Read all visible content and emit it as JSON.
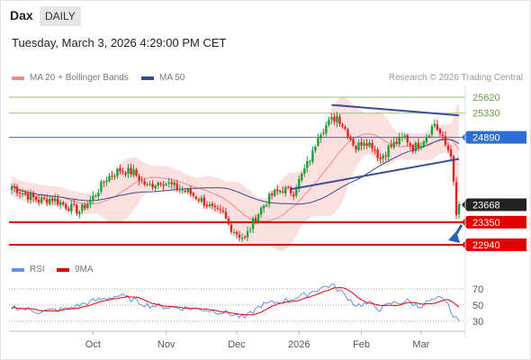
{
  "header": {
    "symbol": "Dax",
    "period": "DAILY",
    "datetime": "Tuesday, March 3, 2026 4:29:00 PM CET",
    "credit": "Research © 2026 Trading Central"
  },
  "colors": {
    "price_up": "#1f9e3a",
    "price_down": "#e0231e",
    "band_fill": "#fbd9d9",
    "ma20": "#f08a8a",
    "ma50": "#3b4a8c",
    "resistance": "#9ac77a",
    "pivot": "#2a6fd6",
    "support": "#e00000",
    "current": "#222222",
    "trendline": "#3c4a9a",
    "arrow": "#2660b8",
    "rsi": "#6b8fe0",
    "rsi_ma": "#e00000"
  },
  "chart_data": [
    {
      "type": "line",
      "name": "price",
      "ylim": [
        22800,
        25800
      ],
      "x_tick_labels": [
        "Oct",
        "Nov",
        "Dec",
        "2026",
        "Feb",
        "Mar"
      ],
      "legend": [
        {
          "label": "MA 20 + Bollinger Bands"
        },
        {
          "label": "MA 50"
        }
      ],
      "levels": [
        {
          "value": 25620,
          "label": "25620",
          "kind": "resistance"
        },
        {
          "value": 25330,
          "label": "25330",
          "kind": "resistance"
        },
        {
          "value": 24890,
          "label": "24890",
          "kind": "pivot"
        },
        {
          "value": 23668,
          "label": "23668",
          "kind": "current"
        },
        {
          "value": 23350,
          "label": "23350",
          "kind": "support"
        },
        {
          "value": 22940,
          "label": "22940",
          "kind": "support"
        }
      ],
      "close_key": [
        [
          0,
          24000
        ],
        [
          5,
          23850
        ],
        [
          10,
          23750
        ],
        [
          15,
          23780
        ],
        [
          20,
          23650
        ],
        [
          25,
          23550
        ],
        [
          30,
          23800
        ],
        [
          35,
          24150
        ],
        [
          40,
          24300
        ],
        [
          45,
          24250
        ],
        [
          50,
          24000
        ],
        [
          55,
          24100
        ],
        [
          60,
          24000
        ],
        [
          65,
          23900
        ],
        [
          70,
          23750
        ],
        [
          75,
          23550
        ],
        [
          78,
          23500
        ],
        [
          80,
          23300
        ],
        [
          83,
          23150
        ],
        [
          86,
          23050
        ],
        [
          89,
          23350
        ],
        [
          92,
          23600
        ],
        [
          96,
          23850
        ],
        [
          100,
          23950
        ],
        [
          104,
          23900
        ],
        [
          108,
          24300
        ],
        [
          111,
          24600
        ],
        [
          113,
          24950
        ],
        [
          116,
          25100
        ],
        [
          118,
          25200
        ],
        [
          120,
          25280
        ],
        [
          123,
          25050
        ],
        [
          127,
          24700
        ],
        [
          130,
          24850
        ],
        [
          133,
          24750
        ],
        [
          136,
          24500
        ],
        [
          139,
          24700
        ],
        [
          142,
          24800
        ],
        [
          145,
          24900
        ],
        [
          148,
          24700
        ],
        [
          151,
          24800
        ],
        [
          154,
          25000
        ],
        [
          156,
          25150
        ],
        [
          158,
          24950
        ],
        [
          160,
          24750
        ],
        [
          162,
          24600
        ],
        [
          164,
          23450
        ],
        [
          165,
          23668
        ]
      ],
      "trendlines": [
        {
          "points": [
            [
              118,
              25480
            ],
            [
              165,
              25290
            ]
          ]
        },
        {
          "points": [
            [
              103,
              23950
            ],
            [
              165,
              24500
            ]
          ]
        }
      ],
      "projection": {
        "points": [
          [
            166,
            23300
          ],
          [
            178,
            22940
          ]
        ]
      }
    },
    {
      "type": "line",
      "name": "rsi",
      "ylim": [
        25,
        80
      ],
      "y_tick_labels": [
        "70",
        "50",
        "30"
      ],
      "legend": [
        {
          "label": "RSI"
        },
        {
          "label": "9MA"
        }
      ],
      "rsi_key": [
        [
          0,
          48
        ],
        [
          10,
          42
        ],
        [
          20,
          45
        ],
        [
          30,
          55
        ],
        [
          40,
          62
        ],
        [
          50,
          50
        ],
        [
          60,
          47
        ],
        [
          70,
          45
        ],
        [
          80,
          40
        ],
        [
          86,
          34
        ],
        [
          92,
          50
        ],
        [
          100,
          55
        ],
        [
          108,
          62
        ],
        [
          113,
          70
        ],
        [
          118,
          75
        ],
        [
          122,
          65
        ],
        [
          127,
          50
        ],
        [
          132,
          52
        ],
        [
          136,
          45
        ],
        [
          140,
          52
        ],
        [
          146,
          55
        ],
        [
          150,
          48
        ],
        [
          154,
          55
        ],
        [
          158,
          58
        ],
        [
          161,
          50
        ],
        [
          163,
          35
        ],
        [
          165,
          30
        ]
      ]
    }
  ]
}
